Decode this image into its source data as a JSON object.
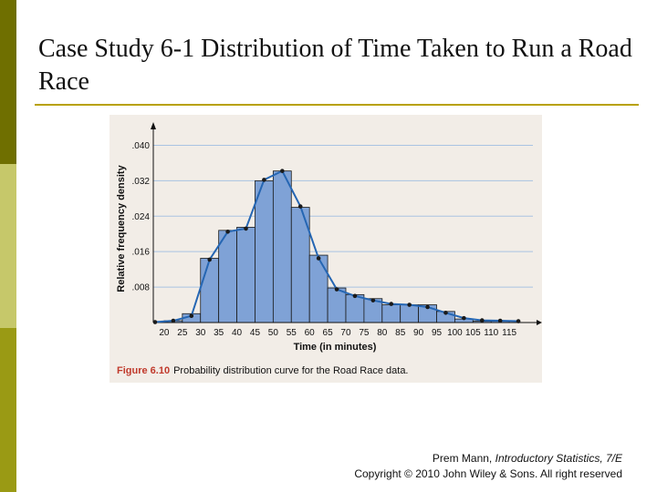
{
  "slide": {
    "title": "Case Study 6-1 Distribution of Time Taken to Run a Road Race",
    "credit_author": "Prem Mann,",
    "credit_book": "Introductory Statistics, 7/E",
    "credit_copyright": "Copyright © 2010 John Wiley & Sons. All right reserved"
  },
  "figure": {
    "number": "Figure 6.10",
    "caption": "Probability distribution curve for the Road Race data."
  },
  "colors": {
    "bar_fill": "#7fa2d6",
    "bar_stroke": "#1a1a1a",
    "curve": "#2566b3",
    "point": "#1a1a1a",
    "grid": "#a9c3e2",
    "figure_bg": "#f2ede7",
    "caption_accent": "#c0392b"
  },
  "chart_data": {
    "type": "bar",
    "xlabel": "Time (in minutes)",
    "ylabel": "Relative frequency density",
    "x_ticks": [
      "20",
      "25",
      "30",
      "35",
      "40",
      "45",
      "50",
      "55",
      "60",
      "65",
      "70",
      "75",
      "80",
      "85",
      "90",
      "95",
      "100",
      "105",
      "110",
      "115"
    ],
    "y_ticks": [
      ".008",
      ".016",
      ".024",
      ".032",
      ".040"
    ],
    "y_tick_values": [
      0.008,
      0.016,
      0.024,
      0.032,
      0.04
    ],
    "xlim": [
      17,
      122
    ],
    "ylim": [
      0,
      0.044
    ],
    "grid": true,
    "bars": [
      {
        "x0": 20,
        "x1": 25,
        "y": 0.0004
      },
      {
        "x0": 25,
        "x1": 30,
        "y": 0.002
      },
      {
        "x0": 30,
        "x1": 35,
        "y": 0.0145
      },
      {
        "x0": 35,
        "x1": 40,
        "y": 0.0208
      },
      {
        "x0": 40,
        "x1": 45,
        "y": 0.0215
      },
      {
        "x0": 45,
        "x1": 50,
        "y": 0.032
      },
      {
        "x0": 50,
        "x1": 55,
        "y": 0.0342
      },
      {
        "x0": 55,
        "x1": 60,
        "y": 0.026
      },
      {
        "x0": 60,
        "x1": 65,
        "y": 0.0152
      },
      {
        "x0": 65,
        "x1": 70,
        "y": 0.0078
      },
      {
        "x0": 70,
        "x1": 75,
        "y": 0.0063
      },
      {
        "x0": 75,
        "x1": 80,
        "y": 0.0054
      },
      {
        "x0": 80,
        "x1": 85,
        "y": 0.004
      },
      {
        "x0": 85,
        "x1": 90,
        "y": 0.004
      },
      {
        "x0": 90,
        "x1": 95,
        "y": 0.004
      },
      {
        "x0": 95,
        "x1": 100,
        "y": 0.0025
      },
      {
        "x0": 100,
        "x1": 105,
        "y": 0.0008
      },
      {
        "x0": 105,
        "x1": 110,
        "y": 0.0003
      },
      {
        "x0": 110,
        "x1": 115,
        "y": 0.0003
      }
    ],
    "curve": {
      "x": [
        17.5,
        22.5,
        27.5,
        32.5,
        37.5,
        42.5,
        47.5,
        52.5,
        57.5,
        62.5,
        67.5,
        72.5,
        77.5,
        82.5,
        87.5,
        92.5,
        97.5,
        102.5,
        107.5,
        112.5,
        117.5
      ],
      "y": [
        0.0001,
        0.0004,
        0.0015,
        0.0142,
        0.0205,
        0.0212,
        0.0322,
        0.0342,
        0.0262,
        0.0145,
        0.0075,
        0.006,
        0.005,
        0.0042,
        0.004,
        0.0035,
        0.0022,
        0.001,
        0.0005,
        0.0004,
        0.0003
      ]
    }
  }
}
